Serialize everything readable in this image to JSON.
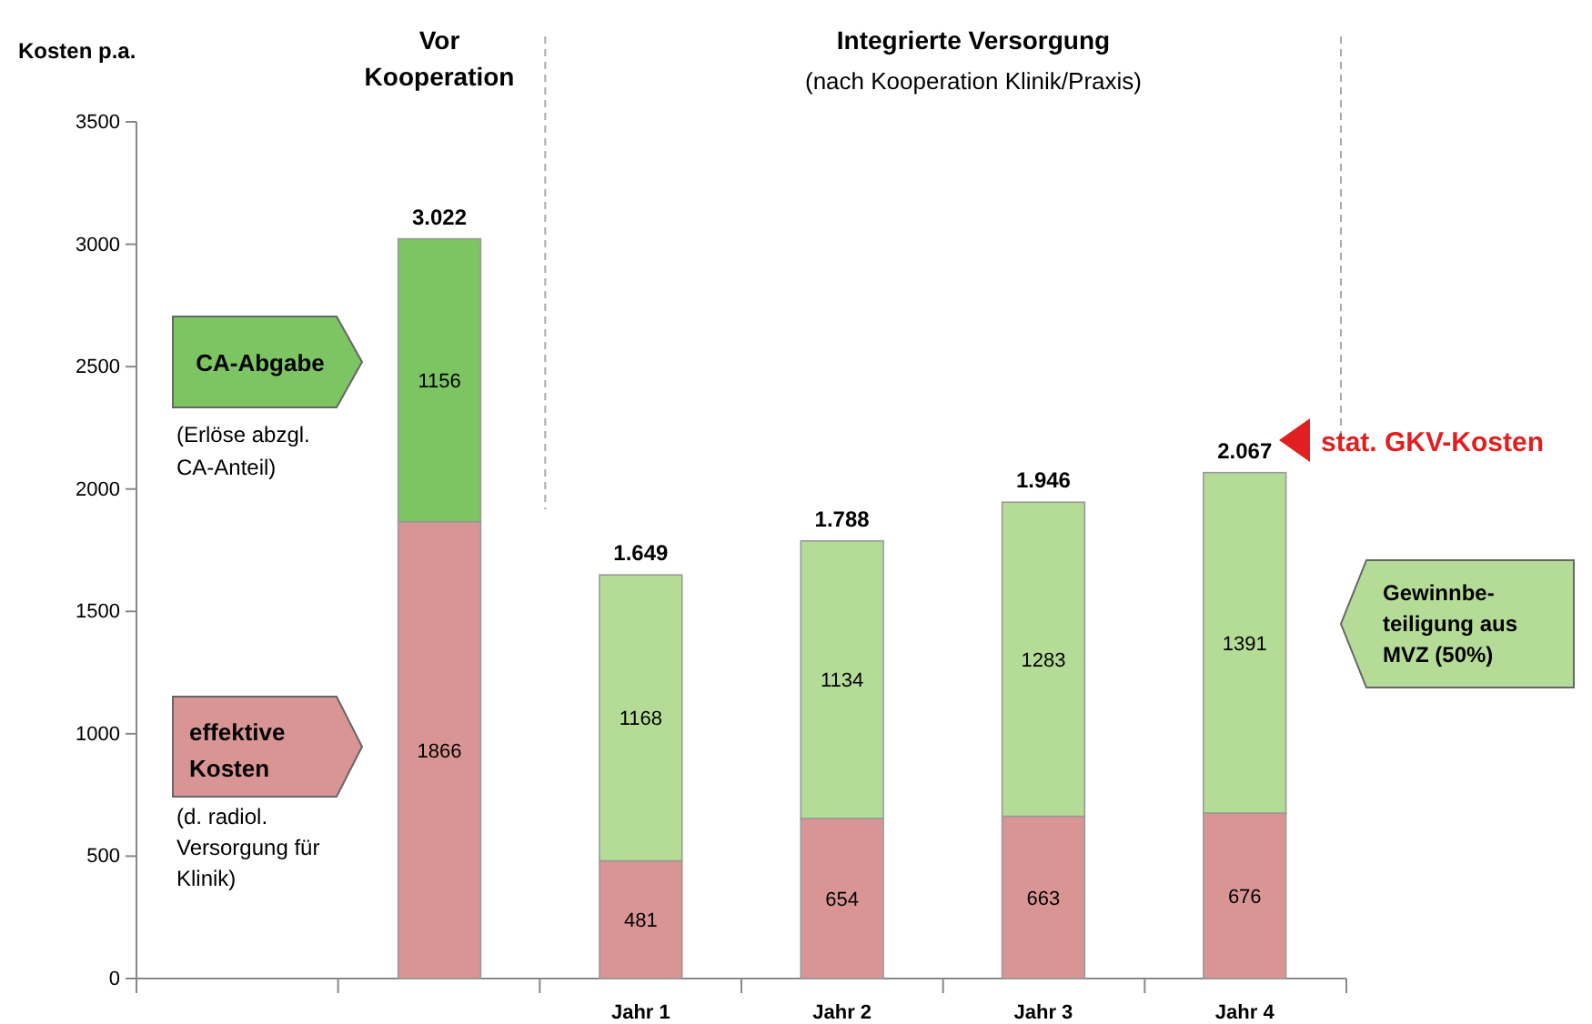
{
  "chart_data": {
    "type": "bar",
    "stacked": true,
    "ylabel": "Kosten p.a.",
    "categories": [
      null,
      null,
      "Jahr 1",
      "Jahr 2",
      "Jahr 3",
      "Jahr 4"
    ],
    "series": [
      {
        "color": "#d99594",
        "values": [
          null,
          1866,
          481,
          654,
          663,
          676
        ]
      },
      {
        "colors": [
          "#b5dc97",
          "#7dc462",
          "#b5dc97",
          "#b5dc97",
          "#b5dc97",
          "#b5dc97"
        ],
        "values": [
          null,
          1156,
          1168,
          1134,
          1283,
          1391
        ]
      }
    ],
    "totals": [
      null,
      "3.022",
      "1.649",
      "1.788",
      "1.946",
      "2.067"
    ],
    "data_labels": true,
    "ylim": [
      0,
      3500
    ],
    "yticks": [
      0,
      500,
      1000,
      1500,
      2000,
      2500,
      3000,
      3500
    ],
    "grid": false,
    "annotations": [
      "Vor Kooperation",
      "Integrierte Versorgung",
      "(nach Kooperation Klinik/Praxis)",
      "CA-Abgabe",
      "(Erlöse abzgl. CA-Anteil)",
      "effektive Kosten",
      "(d. radiol. Versorgung für Klinik)",
      "Gewinnbe-teiligung aus MVZ (50%)",
      "stat. GKV-Kosten"
    ]
  }
}
